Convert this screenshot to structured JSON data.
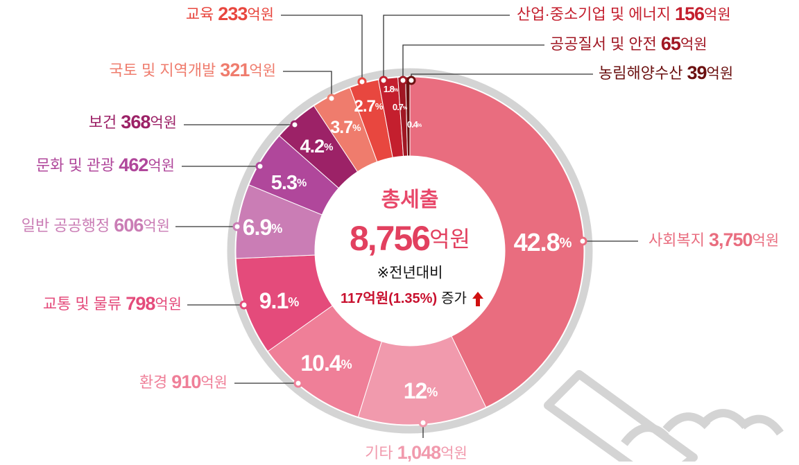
{
  "chart_data": {
    "type": "pie",
    "title": "총세출",
    "total": {
      "value": 8756,
      "label": "8,756"
    },
    "unit": "억원",
    "percent_unit": "%",
    "note": "※전년대비",
    "change": "117억원(1.35%)",
    "change_text": "증가",
    "categories": [
      "사회복지",
      "기타",
      "환경",
      "교통 및 물류",
      "일반 공공행정",
      "문화 및 관광",
      "보건",
      "국토 및 지역개발",
      "교육",
      "산업·중소기업 및 에너지",
      "공공질서 및 안전",
      "농림해양수산"
    ],
    "values": [
      42.8,
      12,
      10.4,
      9.1,
      6.9,
      5.3,
      4.2,
      3.7,
      2.7,
      1.8,
      0.7,
      0.4
    ],
    "amounts": [
      {
        "value": 3750,
        "label": "3,750"
      },
      {
        "value": 1048,
        "label": "1,048"
      },
      910,
      798,
      606,
      462,
      368,
      321,
      233,
      156,
      65,
      39
    ],
    "colors": [
      "#e96d7f",
      "#f19aad",
      "#ef7f98",
      "#e44b7b",
      "#ca7db5",
      "#b0479b",
      "#9c2267",
      "#ef7c6d",
      "#e8473f",
      "#c41f2e",
      "#a01723",
      "#6b1010"
    ]
  }
}
